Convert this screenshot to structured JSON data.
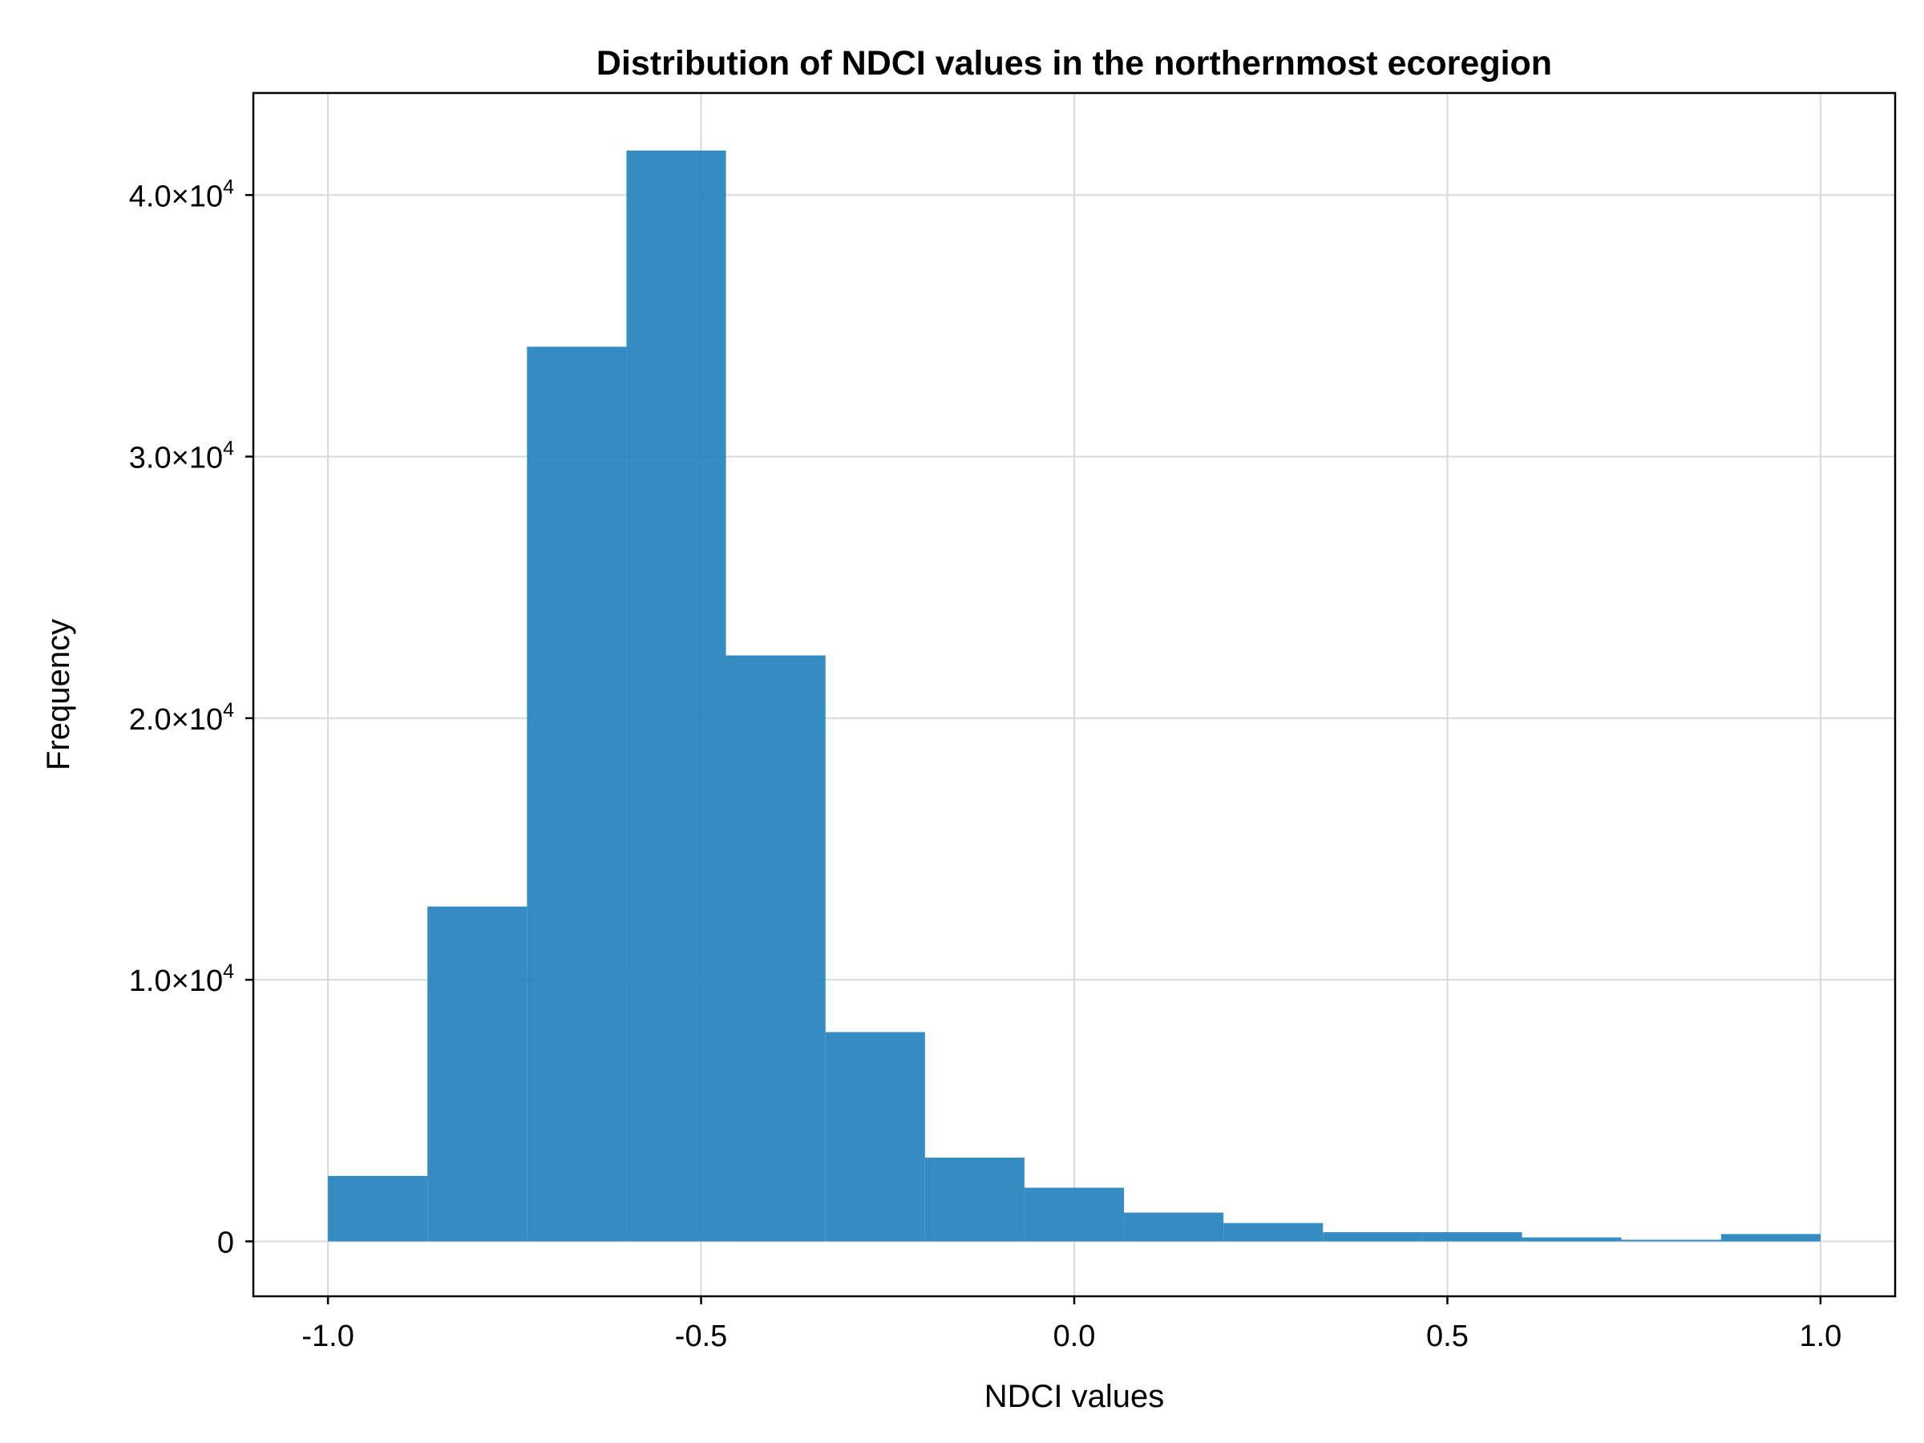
{
  "chart_data": {
    "type": "bar",
    "title": "Distribution of NDCI values in the northernmost ecoregion",
    "xlabel": "NDCI values",
    "ylabel": "Frequency",
    "xlim": [
      -1.1,
      1.1
    ],
    "ylim": [
      -2100,
      43900
    ],
    "grid": true,
    "bar_color": "#1f7fbb",
    "bins": [
      {
        "start": -1.0,
        "end": -0.8667,
        "value": 2500
      },
      {
        "start": -0.8667,
        "end": -0.7333,
        "value": 12800
      },
      {
        "start": -0.7333,
        "end": -0.6,
        "value": 34200
      },
      {
        "start": -0.6,
        "end": -0.4667,
        "value": 41700
      },
      {
        "start": -0.4667,
        "end": -0.3333,
        "value": 22400
      },
      {
        "start": -0.3333,
        "end": -0.2,
        "value": 8000
      },
      {
        "start": -0.2,
        "end": -0.0667,
        "value": 3200
      },
      {
        "start": -0.0667,
        "end": 0.0667,
        "value": 2050
      },
      {
        "start": 0.0667,
        "end": 0.2,
        "value": 1100
      },
      {
        "start": 0.2,
        "end": 0.3333,
        "value": 700
      },
      {
        "start": 0.3333,
        "end": 0.4667,
        "value": 350
      },
      {
        "start": 0.4667,
        "end": 0.6,
        "value": 350
      },
      {
        "start": 0.6,
        "end": 0.7333,
        "value": 150
      },
      {
        "start": 0.7333,
        "end": 0.8667,
        "value": 60
      },
      {
        "start": 0.8667,
        "end": 1.0,
        "value": 280
      }
    ],
    "x_ticks": [
      {
        "value": -1.0,
        "label": "-1.0"
      },
      {
        "value": -0.5,
        "label": "-0.5"
      },
      {
        "value": 0.0,
        "label": "0.0"
      },
      {
        "value": 0.5,
        "label": "0.5"
      },
      {
        "value": 1.0,
        "label": "1.0"
      }
    ],
    "y_ticks": [
      {
        "value": 0,
        "mantissa": "0",
        "exponent": ""
      },
      {
        "value": 10000,
        "mantissa": "1.0×10",
        "exponent": "4"
      },
      {
        "value": 20000,
        "mantissa": "2.0×10",
        "exponent": "4"
      },
      {
        "value": 30000,
        "mantissa": "3.0×10",
        "exponent": "4"
      },
      {
        "value": 40000,
        "mantissa": "4.0×10",
        "exponent": "4"
      }
    ]
  }
}
